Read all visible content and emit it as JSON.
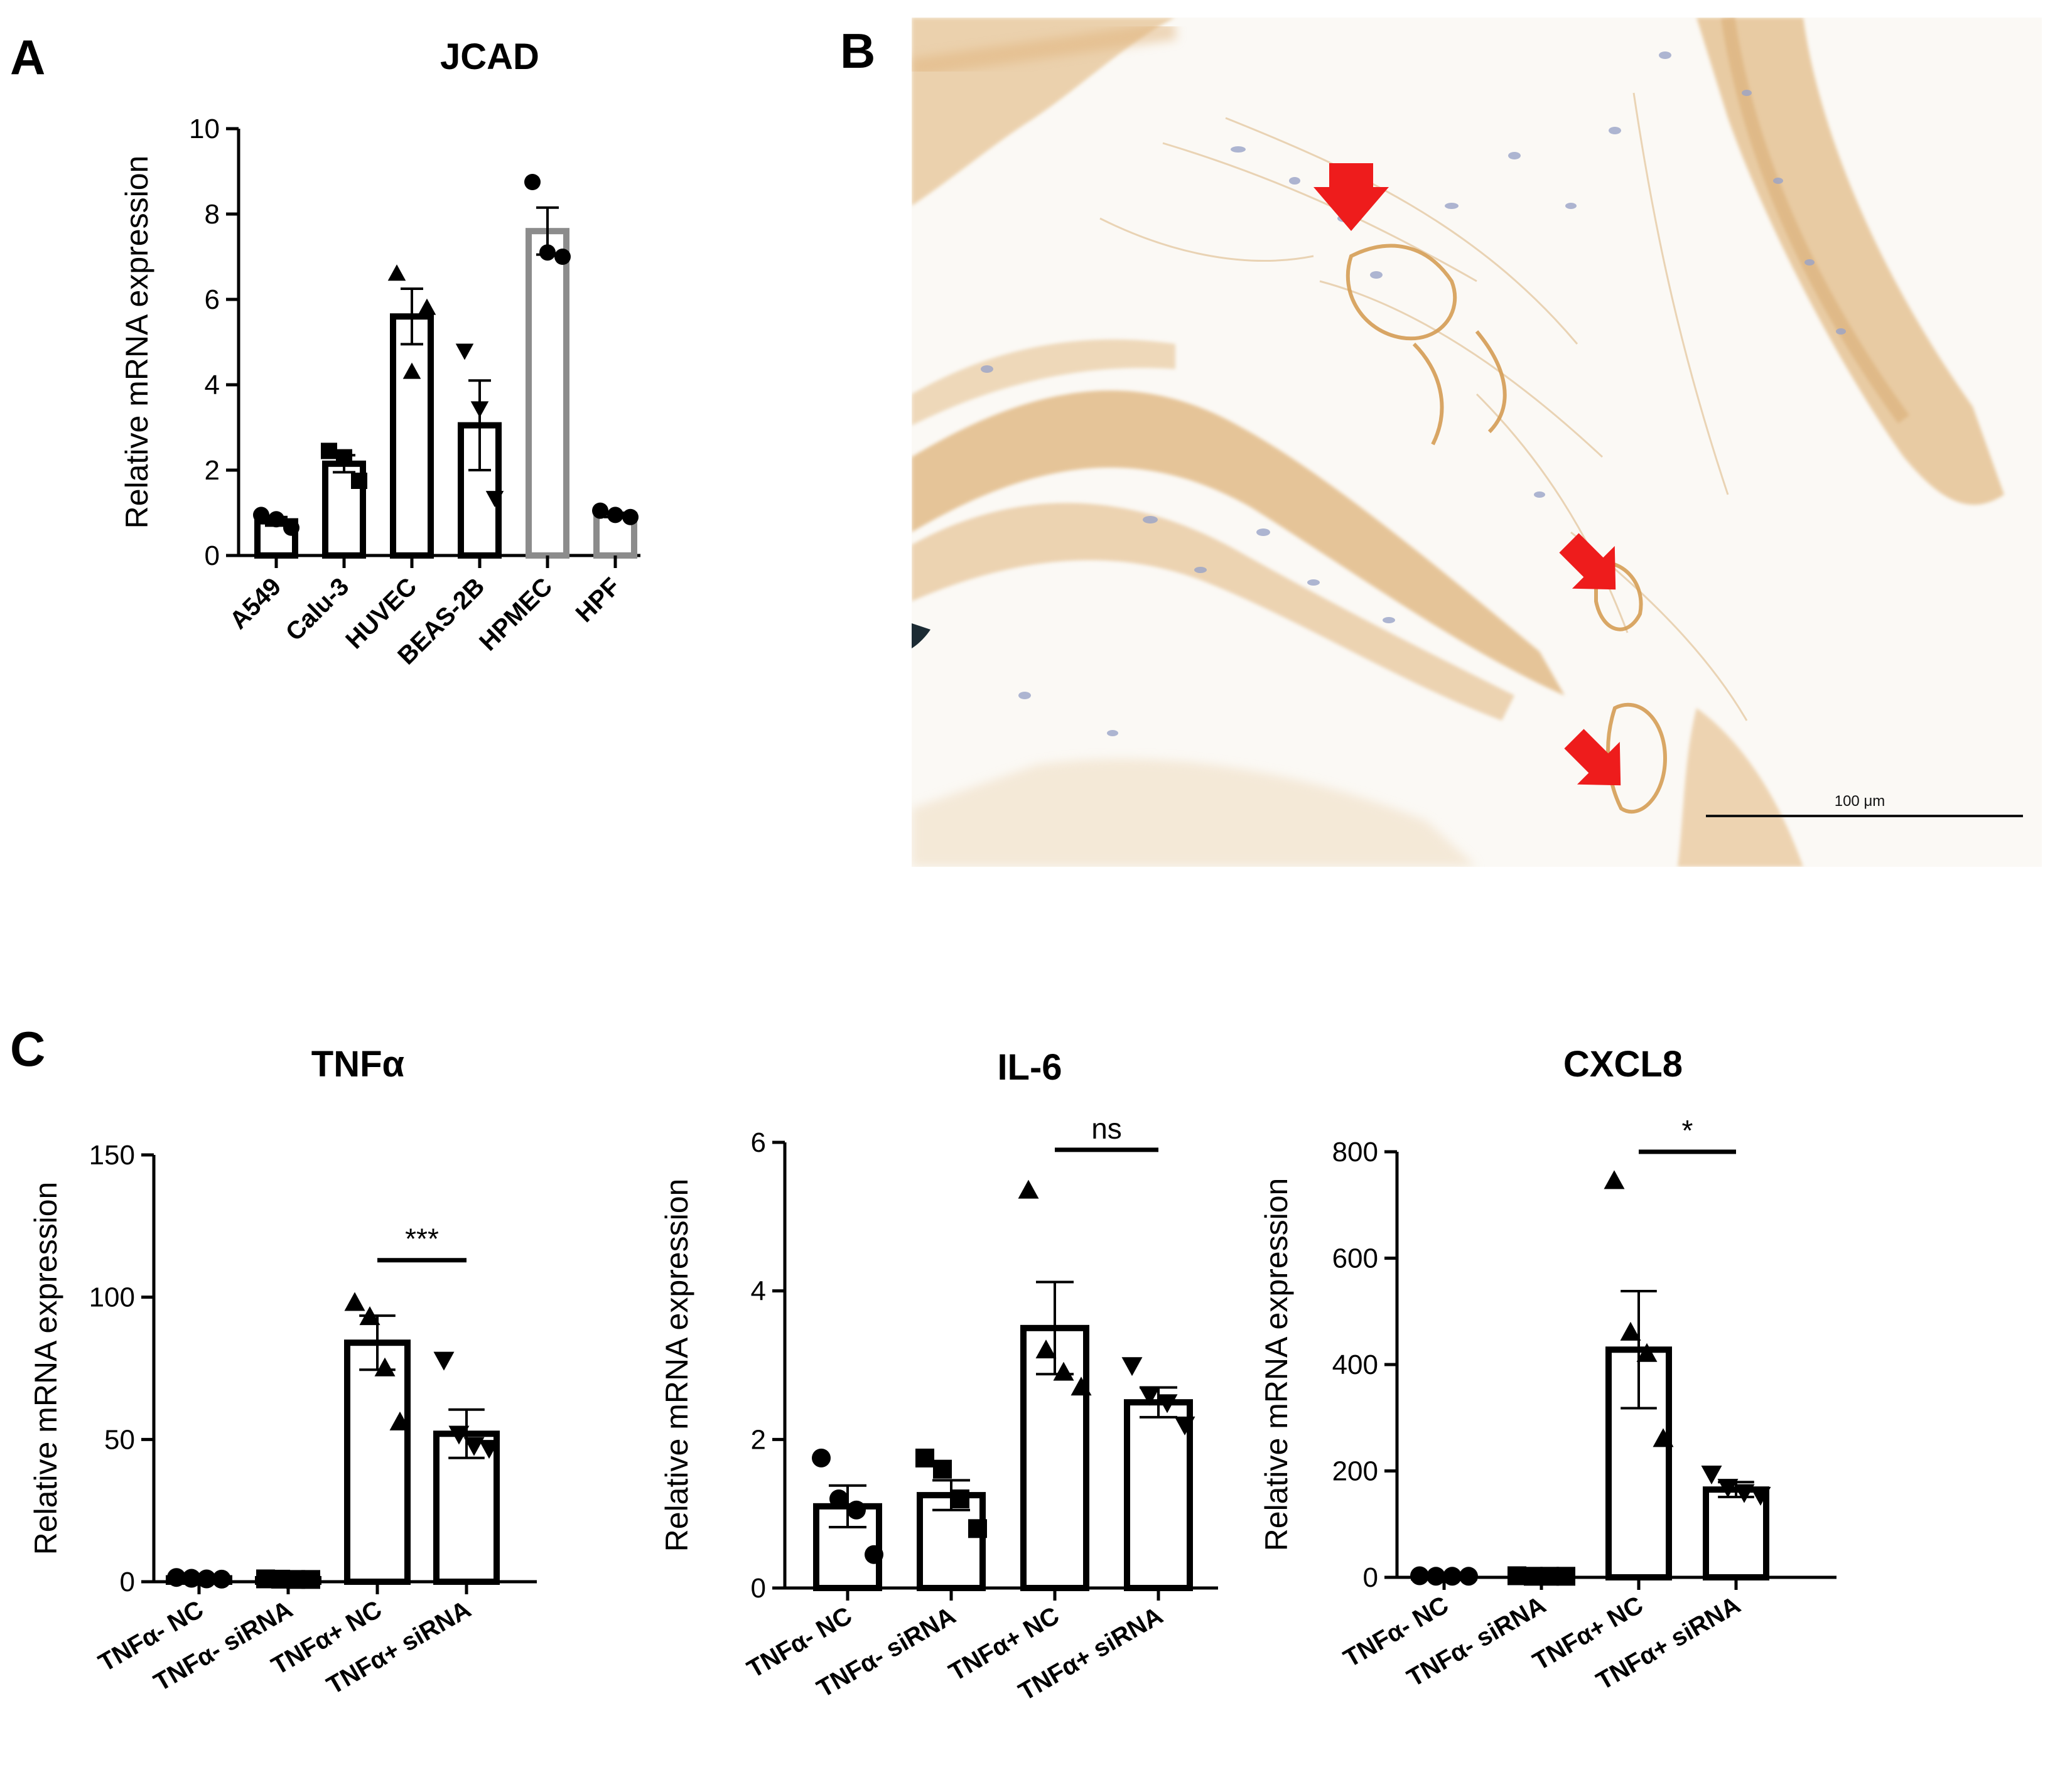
{
  "panels": {
    "A": {
      "letter": "A"
    },
    "B": {
      "letter": "B",
      "scale_bar_label": "100 μm"
    },
    "C": {
      "letter": "C"
    }
  },
  "colors": {
    "bar_fill": "#ffffff",
    "bar_stroke": "#000000",
    "bar_stroke_light": "#8c8c8c",
    "arrow": "#ee1c1c",
    "tissue_background": "#fbf9f5",
    "tissue_stain": "#e0b27a",
    "nuclei": "#9aa4c8"
  },
  "micrograph": {
    "description_icon": "ihc-tissue-image",
    "arrow_count": 3
  },
  "chart_data": [
    {
      "id": "jcad",
      "type": "bar",
      "title": "JCAD",
      "ylabel": "Relative mRNA expression",
      "xlabel": "",
      "ylim": [
        0,
        10
      ],
      "yticks": [
        0,
        2,
        4,
        6,
        8,
        10
      ],
      "categories": [
        "A549",
        "Calu-3",
        "HUVEC",
        "BEAS-2B",
        "HPMEC",
        "HPF"
      ],
      "values": [
        0.8,
        2.15,
        5.6,
        3.05,
        7.6,
        0.95
      ],
      "sem": [
        0.1,
        0.2,
        0.65,
        1.05,
        0.55,
        0.05
      ],
      "markers": [
        "circle",
        "square",
        "triangle-up",
        "triangle-down",
        "circle",
        "circle"
      ],
      "points": [
        [
          0.95,
          0.85,
          0.65
        ],
        [
          2.45,
          2.3,
          1.75
        ],
        [
          6.6,
          4.3,
          5.8
        ],
        [
          4.8,
          3.45,
          1.35
        ],
        [
          8.75,
          7.1,
          7.0
        ],
        [
          1.05,
          0.95,
          0.9
        ]
      ],
      "bar_color_variant": [
        "dark",
        "dark",
        "dark",
        "dark",
        "light",
        "light"
      ],
      "grid": false,
      "legend": "none",
      "significance": []
    },
    {
      "id": "tnfa",
      "type": "bar",
      "title": "TNFα",
      "ylabel": "Relative mRNA expression",
      "xlabel": "",
      "ylim": [
        0,
        150
      ],
      "yticks": [
        0,
        50,
        100,
        150
      ],
      "categories": [
        "TNFα- NC",
        "TNFα- siRNA",
        "TNFα+ NC",
        "TNFα+ siRNA"
      ],
      "values": [
        1.2,
        0.9,
        84,
        52
      ],
      "sem": [
        0.2,
        0.2,
        9.5,
        8.5
      ],
      "markers": [
        "circle",
        "square",
        "triangle-up",
        "triangle-down"
      ],
      "points": [
        [
          1.5,
          1.2,
          1.0,
          0.9
        ],
        [
          1.0,
          0.9,
          0.8,
          0.8
        ],
        [
          98,
          93,
          75,
          56
        ],
        [
          78,
          52,
          48,
          47
        ]
      ],
      "bar_color_variant": [
        "dark",
        "dark",
        "dark",
        "dark"
      ],
      "grid": false,
      "legend": "none",
      "significance": [
        {
          "from": 2,
          "to": 3,
          "label": "***",
          "y": 113
        }
      ]
    },
    {
      "id": "il6",
      "type": "bar",
      "title": "IL-6",
      "ylabel": "Relative mRNA expression",
      "xlabel": "",
      "ylim": [
        0,
        6
      ],
      "yticks": [
        0,
        2,
        4,
        6
      ],
      "categories": [
        "TNFα- NC",
        "TNFα- siRNA",
        "TNFα+ NC",
        "TNFα+ siRNA"
      ],
      "values": [
        1.1,
        1.25,
        3.5,
        2.5
      ],
      "sem": [
        0.28,
        0.2,
        0.62,
        0.2
      ],
      "markers": [
        "circle",
        "square",
        "triangle-up",
        "triangle-down"
      ],
      "points": [
        [
          1.75,
          1.2,
          1.05,
          0.45
        ],
        [
          1.75,
          1.6,
          1.2,
          0.8
        ],
        [
          5.35,
          3.2,
          2.9,
          2.7
        ],
        [
          3.0,
          2.6,
          2.5,
          2.2
        ]
      ],
      "bar_color_variant": [
        "dark",
        "dark",
        "dark",
        "dark"
      ],
      "grid": false,
      "legend": "none",
      "significance": [
        {
          "from": 2,
          "to": 3,
          "label": "ns",
          "y": 5.9
        }
      ]
    },
    {
      "id": "cxcl8",
      "type": "bar",
      "title": "CXCL8",
      "ylabel": "Relative mRNA expression",
      "xlabel": "",
      "ylim": [
        0,
        800
      ],
      "yticks": [
        0,
        200,
        400,
        600,
        800
      ],
      "categories": [
        "TNFα- NC",
        "TNFα- siRNA",
        "TNFα+ NC",
        "TNFα+ siRNA"
      ],
      "values": [
        2,
        2,
        428,
        165
      ],
      "sem": [
        0.5,
        0.5,
        110,
        14
      ],
      "markers": [
        "circle",
        "square",
        "triangle-up",
        "triangle-down"
      ],
      "points": [
        [
          3,
          2,
          2,
          2
        ],
        [
          3,
          2,
          2,
          2
        ],
        [
          745,
          460,
          420,
          260
        ],
        [
          195,
          170,
          160,
          155
        ]
      ],
      "bar_color_variant": [
        "dark",
        "dark",
        "dark",
        "dark"
      ],
      "grid": false,
      "legend": "none",
      "significance": [
        {
          "from": 2,
          "to": 3,
          "label": "*",
          "y": 800
        }
      ]
    }
  ]
}
